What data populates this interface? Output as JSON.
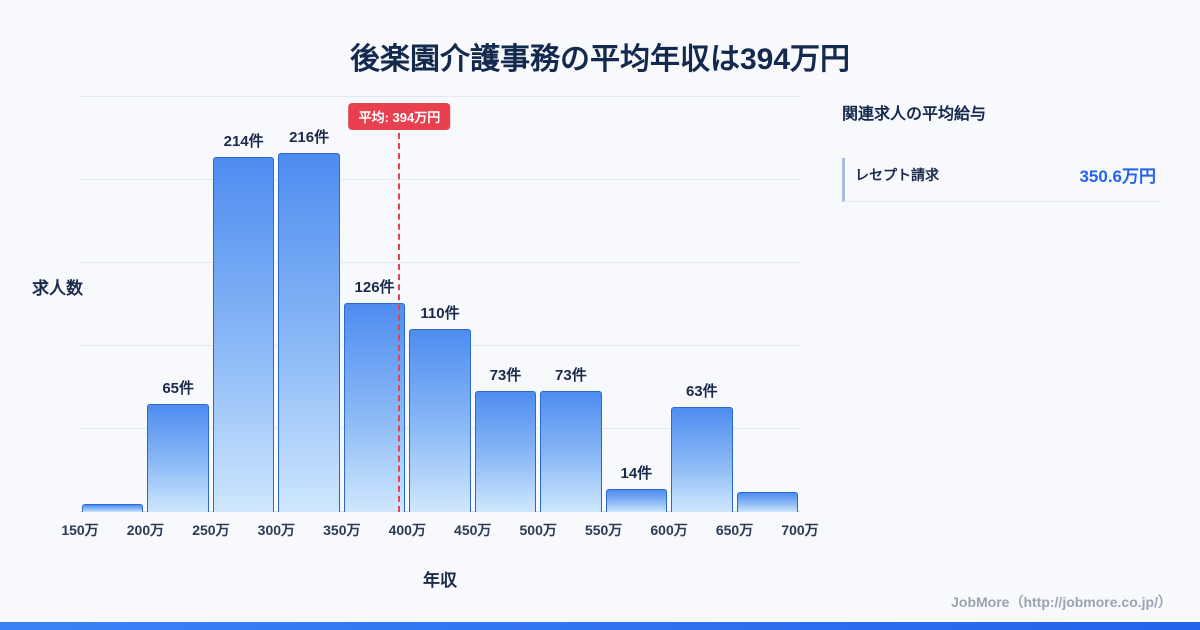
{
  "title": "後楽園介護事務の平均年収は394万円",
  "chart_data": {
    "type": "bar",
    "title": "後楽園介護事務の平均年収は394万円",
    "categories": [
      "150万",
      "200万",
      "250万",
      "300万",
      "350万",
      "400万",
      "450万",
      "500万",
      "550万",
      "600万",
      "650万",
      "700万"
    ],
    "values": [
      5,
      65,
      214,
      216,
      126,
      110,
      73,
      73,
      14,
      63,
      12
    ],
    "bar_labels": [
      "",
      "65件",
      "214件",
      "216件",
      "126件",
      "110件",
      "73件",
      "73件",
      "14件",
      "63件",
      ""
    ],
    "xlabel": "年収",
    "ylabel": "求人数",
    "ylim": [
      0,
      250
    ],
    "gridline_step": 50,
    "x_range": [
      150,
      700
    ],
    "grid": true,
    "legend": false,
    "average": {
      "value": 394,
      "label": "平均: 394万円"
    }
  },
  "side_panel": {
    "heading": "関連求人の平均給与",
    "rows": [
      {
        "label": "レセプト請求",
        "value": "350.6万円"
      }
    ]
  },
  "footer": {
    "text": "JobMore（http://jobmore.co.jp/）"
  },
  "colors": {
    "bar_top": "#4e8cf0",
    "bar_bottom": "#cfe7fd",
    "bar_border": "#2a6ad0",
    "average_red": "#e8404f",
    "title_navy": "#14294e",
    "value_blue": "#2563eb",
    "bottom_strip_blue": "#2563eb"
  }
}
